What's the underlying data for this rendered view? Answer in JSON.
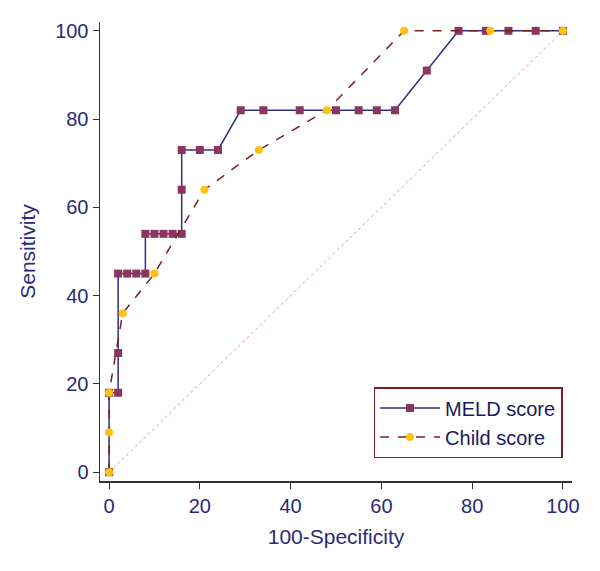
{
  "chart_data": {
    "type": "line",
    "xlabel": "100-Specificity",
    "ylabel": "Sensitivity",
    "xlim": [
      -2,
      102
    ],
    "xticks": [
      0,
      20,
      40,
      60,
      80,
      100
    ],
    "ylim": [
      -2,
      102
    ],
    "yticks": [
      0,
      20,
      40,
      60,
      80,
      100
    ],
    "grid": false,
    "legend": "lower right",
    "series": [
      {
        "name": "MELD score",
        "color": "#2e2f7f",
        "marker": "square",
        "line_style": "solid",
        "x": [
          0,
          0,
          2,
          2,
          2,
          4,
          6,
          8,
          8,
          10,
          12,
          14,
          16,
          16,
          16,
          20,
          24,
          29,
          34,
          42,
          50,
          55,
          59,
          63,
          70,
          77,
          83,
          88,
          94,
          100
        ],
        "values": [
          0,
          18,
          18,
          27,
          45,
          45,
          45,
          45,
          54,
          54,
          54,
          54,
          54,
          64,
          73,
          73,
          73,
          82,
          82,
          82,
          82,
          82,
          82,
          82,
          91,
          100,
          100,
          100,
          100,
          100
        ]
      },
      {
        "name": "Child score",
        "color": "#7a1f1f",
        "marker": "circle",
        "line_style": "dash",
        "x": [
          0,
          0,
          0,
          3,
          10,
          21,
          33,
          48,
          65,
          84,
          100
        ],
        "values": [
          0,
          9,
          18,
          36,
          45,
          64,
          73,
          82,
          100,
          100,
          100
        ]
      },
      {
        "color": "#e07a7a",
        "line_style": "dot",
        "x": [
          0,
          100
        ],
        "values": [
          0,
          100
        ]
      }
    ]
  }
}
